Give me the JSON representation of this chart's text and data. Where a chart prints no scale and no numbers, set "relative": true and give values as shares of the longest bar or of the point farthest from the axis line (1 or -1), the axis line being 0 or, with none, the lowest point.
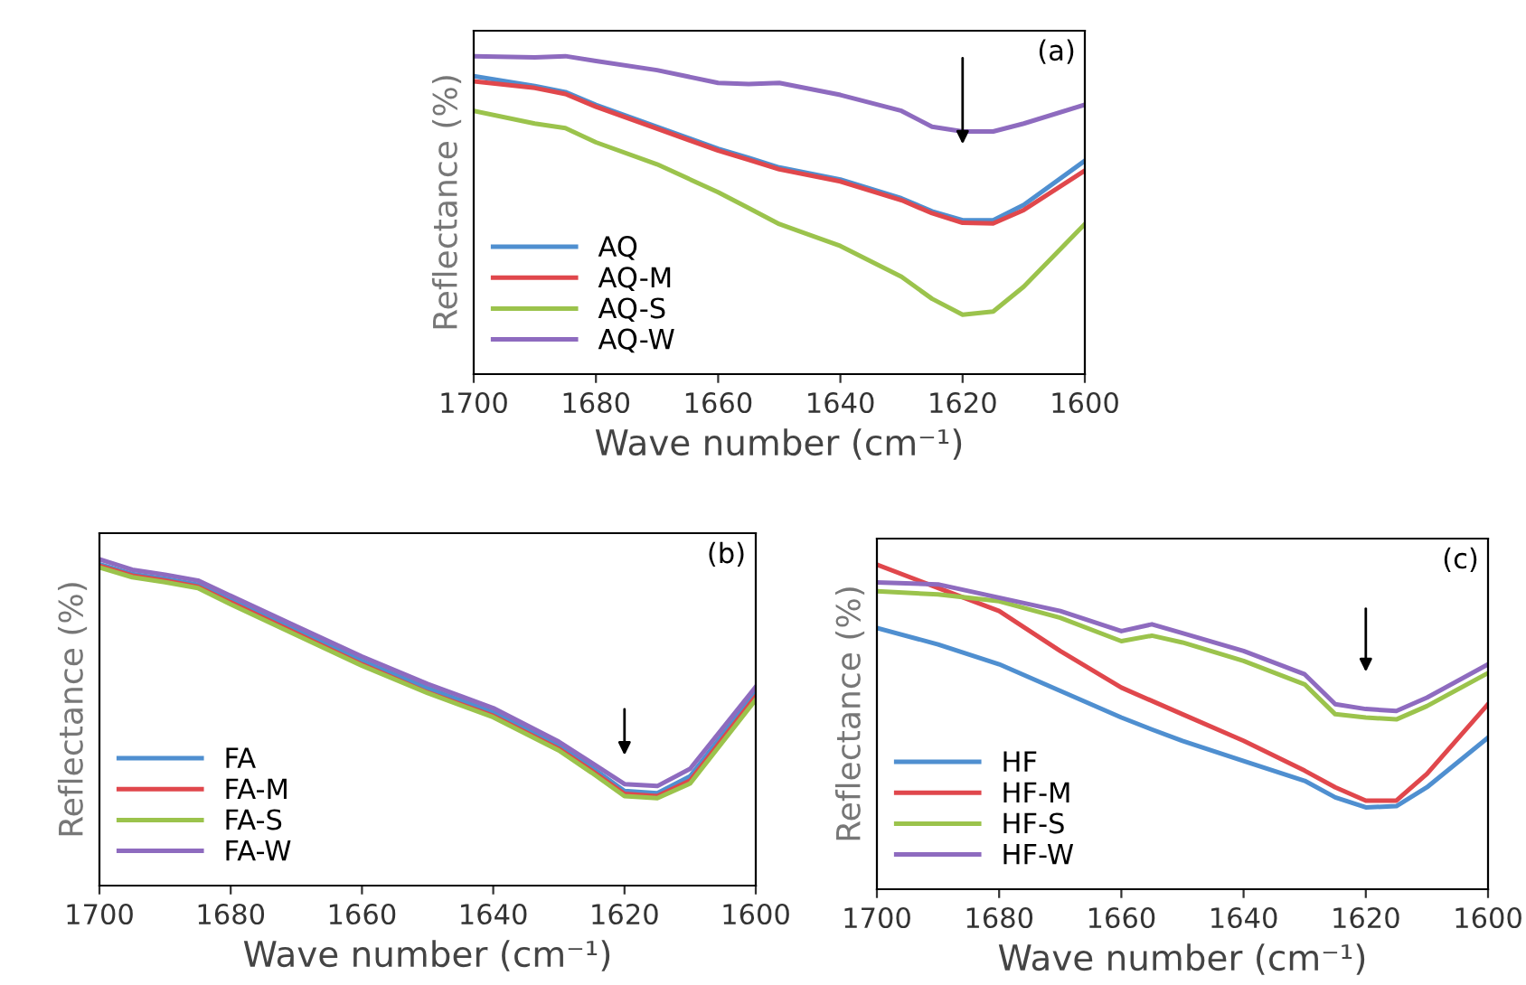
{
  "chart_data": [
    {
      "type": "line",
      "relative": true,
      "xlabel": "Wave number (cm⁻¹)",
      "ylabel": "Reflectance (%)",
      "xlim": [
        1700,
        1600
      ],
      "xticks": [
        1700,
        1680,
        1660,
        1640,
        1620,
        1600
      ],
      "tick_labels": "x",
      "legend": "bottom left",
      "grid": false,
      "marker": "none",
      "line_style": "solid",
      "annotations": [
        "(a)"
      ],
      "series": [
        {
          "name": "AQ",
          "color": "#4f8fd0",
          "x": [
            1700,
            1690,
            1685,
            1680,
            1670,
            1660,
            1655,
            1650,
            1640,
            1630,
            1625,
            1620,
            1615,
            1610,
            1600
          ],
          "values": [
            0.937,
            0.906,
            0.887,
            0.847,
            0.778,
            0.709,
            0.68,
            0.65,
            0.612,
            0.553,
            0.512,
            0.484,
            0.484,
            0.532,
            0.671
          ]
        },
        {
          "name": "AQ-M",
          "color": "#e0474c",
          "x": [
            1700,
            1690,
            1685,
            1680,
            1670,
            1660,
            1655,
            1650,
            1640,
            1630,
            1625,
            1620,
            1615,
            1610,
            1600
          ],
          "values": [
            0.921,
            0.9,
            0.881,
            0.841,
            0.772,
            0.703,
            0.674,
            0.644,
            0.606,
            0.547,
            0.506,
            0.476,
            0.474,
            0.516,
            0.64
          ]
        },
        {
          "name": "AQ-S",
          "color": "#9bc34c",
          "x": [
            1700,
            1690,
            1685,
            1680,
            1670,
            1660,
            1655,
            1650,
            1640,
            1630,
            1625,
            1620,
            1615,
            1610,
            1600
          ],
          "values": [
            0.828,
            0.788,
            0.774,
            0.729,
            0.66,
            0.572,
            0.522,
            0.472,
            0.403,
            0.306,
            0.237,
            0.187,
            0.197,
            0.275,
            0.472
          ]
        },
        {
          "name": "AQ-W",
          "color": "#8e6bbf",
          "x": [
            1700,
            1690,
            1685,
            1680,
            1670,
            1660,
            1655,
            1650,
            1640,
            1630,
            1625,
            1620,
            1615,
            1610,
            1600
          ],
          "values": [
            1.0,
            0.996,
            1.0,
            0.985,
            0.956,
            0.916,
            0.912,
            0.916,
            0.878,
            0.828,
            0.778,
            0.763,
            0.763,
            0.788,
            0.847
          ]
        }
      ]
    },
    {
      "type": "line",
      "relative": true,
      "xlabel": "Wave number (cm⁻¹)",
      "ylabel": "Reflectance (%)",
      "xlim": [
        1700,
        1600
      ],
      "xticks": [
        1700,
        1680,
        1660,
        1640,
        1620,
        1600
      ],
      "tick_labels": "x",
      "legend": "bottom left",
      "grid": false,
      "marker": "none",
      "line_style": "solid",
      "annotations": [
        "(b)"
      ],
      "series": [
        {
          "name": "FA",
          "color": "#4f8fd0",
          "x": [
            1700,
            1695,
            1690,
            1685,
            1680,
            1670,
            1660,
            1650,
            1640,
            1630,
            1625,
            1620,
            1615,
            1610,
            1600
          ],
          "values": [
            0.985,
            0.955,
            0.94,
            0.922,
            0.875,
            0.782,
            0.689,
            0.605,
            0.531,
            0.428,
            0.362,
            0.29,
            0.283,
            0.335,
            0.592
          ]
        },
        {
          "name": "FA-M",
          "color": "#e0474c",
          "x": [
            1700,
            1695,
            1690,
            1685,
            1680,
            1670,
            1660,
            1650,
            1640,
            1630,
            1625,
            1620,
            1615,
            1610,
            1600
          ],
          "values": [
            0.98,
            0.95,
            0.935,
            0.916,
            0.868,
            0.773,
            0.678,
            0.592,
            0.52,
            0.419,
            0.352,
            0.281,
            0.274,
            0.322,
            0.58
          ]
        },
        {
          "name": "FA-S",
          "color": "#9bc34c",
          "x": [
            1700,
            1695,
            1690,
            1685,
            1680,
            1670,
            1660,
            1650,
            1640,
            1630,
            1625,
            1620,
            1615,
            1610,
            1600
          ],
          "values": [
            0.975,
            0.945,
            0.93,
            0.912,
            0.862,
            0.768,
            0.674,
            0.59,
            0.516,
            0.414,
            0.346,
            0.274,
            0.268,
            0.313,
            0.57
          ]
        },
        {
          "name": "FA-W",
          "color": "#8e6bbf",
          "x": [
            1700,
            1695,
            1690,
            1685,
            1680,
            1670,
            1660,
            1650,
            1640,
            1630,
            1625,
            1620,
            1615,
            1610,
            1600
          ],
          "values": [
            1.0,
            0.968,
            0.953,
            0.935,
            0.888,
            0.795,
            0.702,
            0.618,
            0.544,
            0.441,
            0.376,
            0.311,
            0.305,
            0.358,
            0.609
          ]
        }
      ]
    },
    {
      "type": "line",
      "relative": true,
      "xlabel": "Wave number (cm⁻¹)",
      "ylabel": "Reflectance (%)",
      "xlim": [
        1700,
        1600
      ],
      "xticks": [
        1700,
        1680,
        1660,
        1640,
        1620,
        1600
      ],
      "tick_labels": "x",
      "legend": "bottom left",
      "grid": false,
      "marker": "none",
      "line_style": "solid",
      "annotations": [
        "(c)"
      ],
      "series": [
        {
          "name": "HF",
          "color": "#4f8fd0",
          "x": [
            1700,
            1690,
            1680,
            1670,
            1660,
            1655,
            1650,
            1640,
            1630,
            1625,
            1620,
            1615,
            1610,
            1600
          ],
          "values": [
            0.805,
            0.754,
            0.693,
            0.611,
            0.529,
            0.492,
            0.457,
            0.395,
            0.334,
            0.283,
            0.252,
            0.256,
            0.314,
            0.467
          ]
        },
        {
          "name": "HF-M",
          "color": "#e0474c",
          "x": [
            1700,
            1690,
            1680,
            1670,
            1660,
            1655,
            1650,
            1640,
            1630,
            1625,
            1620,
            1615,
            1610,
            1600
          ],
          "values": [
            1.0,
            0.928,
            0.857,
            0.734,
            0.621,
            0.58,
            0.539,
            0.457,
            0.365,
            0.314,
            0.273,
            0.273,
            0.355,
            0.57
          ]
        },
        {
          "name": "HF-S",
          "color": "#9bc34c",
          "x": [
            1700,
            1690,
            1680,
            1670,
            1660,
            1655,
            1650,
            1640,
            1630,
            1625,
            1620,
            1615,
            1610,
            1600
          ],
          "values": [
            0.918,
            0.908,
            0.887,
            0.836,
            0.764,
            0.781,
            0.76,
            0.703,
            0.631,
            0.539,
            0.529,
            0.523,
            0.564,
            0.666
          ]
        },
        {
          "name": "HF-W",
          "color": "#8e6bbf",
          "x": [
            1700,
            1690,
            1680,
            1670,
            1660,
            1655,
            1650,
            1640,
            1630,
            1625,
            1620,
            1615,
            1610,
            1600
          ],
          "values": [
            0.945,
            0.939,
            0.898,
            0.857,
            0.795,
            0.816,
            0.789,
            0.734,
            0.662,
            0.57,
            0.555,
            0.549,
            0.59,
            0.693
          ]
        }
      ]
    }
  ]
}
